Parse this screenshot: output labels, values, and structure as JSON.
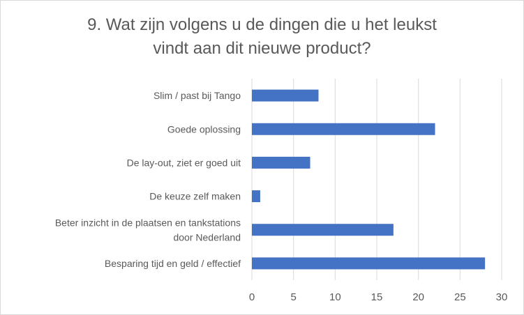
{
  "chart_data": {
    "type": "bar",
    "orientation": "horizontal",
    "title_lines": [
      "9. Wat zijn volgens u de dingen die u het leukst",
      "vindt aan dit nieuwe product?"
    ],
    "categories": [
      [
        "Slim / past bij Tango"
      ],
      [
        "Goede oplossing"
      ],
      [
        "De lay-out, ziet er goed uit"
      ],
      [
        "De keuze zelf maken"
      ],
      [
        "Beter inzicht in de plaatsen en tankstations",
        "door Nederland"
      ],
      [
        "Besparing tijd en geld / effectief"
      ]
    ],
    "values": [
      8,
      22,
      7,
      1,
      17,
      28
    ],
    "xlim": [
      0,
      30
    ],
    "xticks": [
      0,
      5,
      10,
      15,
      20,
      25,
      30
    ],
    "grid": true,
    "legend": "none",
    "colors": {
      "bar": "#4472c4",
      "grid": "#d9d9d9",
      "text": "#595959"
    }
  }
}
